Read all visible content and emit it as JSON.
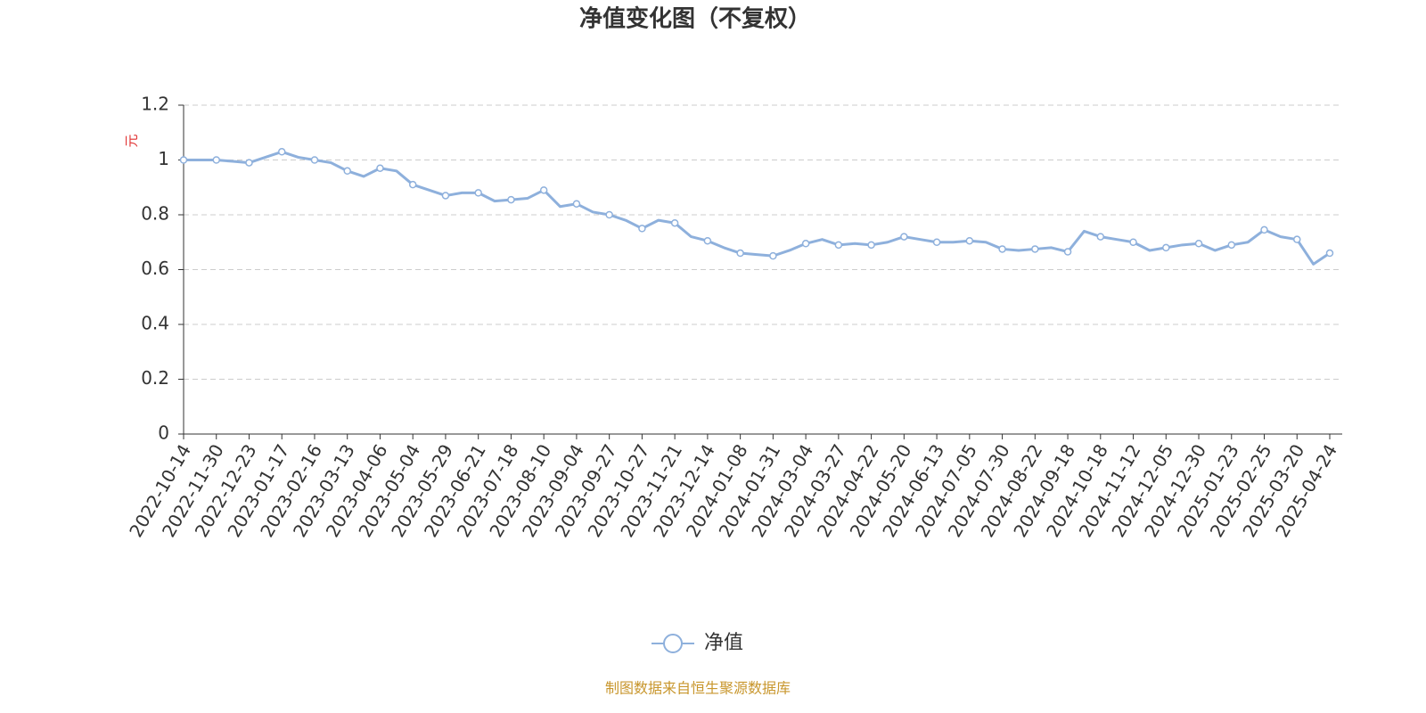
{
  "chart_data": {
    "type": "line",
    "title": "净值变化图（不复权）",
    "y_label": "元",
    "source": "制图数据来自恒生聚源数据库",
    "categories": [
      "2022-10-14",
      null,
      "2022-11-30",
      null,
      "2022-12-23",
      null,
      "2023-01-17",
      null,
      "2023-02-16",
      null,
      "2023-03-13",
      null,
      "2023-04-06",
      null,
      "2023-05-04",
      null,
      "2023-05-29",
      null,
      "2023-06-21",
      null,
      "2023-07-18",
      null,
      "2023-08-10",
      null,
      "2023-09-04",
      null,
      "2023-09-27",
      null,
      "2023-10-27",
      null,
      "2023-11-21",
      null,
      "2023-12-14",
      null,
      "2024-01-08",
      null,
      "2024-01-31",
      null,
      "2024-03-04",
      null,
      "2024-03-27",
      null,
      "2024-04-22",
      null,
      "2024-05-20",
      null,
      "2024-06-13",
      null,
      "2024-07-05",
      null,
      "2024-07-30",
      null,
      "2024-08-22",
      null,
      "2024-09-18",
      null,
      "2024-10-18",
      null,
      "2024-11-12",
      null,
      "2024-12-05",
      null,
      "2024-12-30",
      null,
      "2025-01-23",
      null,
      "2025-02-25",
      null,
      "2025-03-20",
      null,
      "2025-04-24"
    ],
    "series": [
      {
        "name": "净值",
        "color": "#8eb0dc",
        "values": [
          1.0,
          1.0,
          1.0,
          0.995,
          0.99,
          1.01,
          1.03,
          1.01,
          1.0,
          0.99,
          0.96,
          0.94,
          0.97,
          0.96,
          0.91,
          0.89,
          0.87,
          0.88,
          0.88,
          0.85,
          0.855,
          0.86,
          0.89,
          0.83,
          0.84,
          0.81,
          0.8,
          0.78,
          0.75,
          0.78,
          0.77,
          0.72,
          0.705,
          0.68,
          0.66,
          0.655,
          0.65,
          0.67,
          0.695,
          0.71,
          0.69,
          0.695,
          0.69,
          0.7,
          0.72,
          0.71,
          0.7,
          0.7,
          0.705,
          0.7,
          0.675,
          0.67,
          0.675,
          0.68,
          0.665,
          0.74,
          0.72,
          0.71,
          0.7,
          0.67,
          0.68,
          0.69,
          0.695,
          0.67,
          0.69,
          0.7,
          0.745,
          0.72,
          0.71,
          0.62,
          0.66
        ]
      }
    ],
    "ylim": [
      0,
      1.2
    ],
    "yticks": [
      0,
      0.2,
      0.4,
      0.6,
      0.8,
      1,
      1.2
    ],
    "grid": true
  }
}
